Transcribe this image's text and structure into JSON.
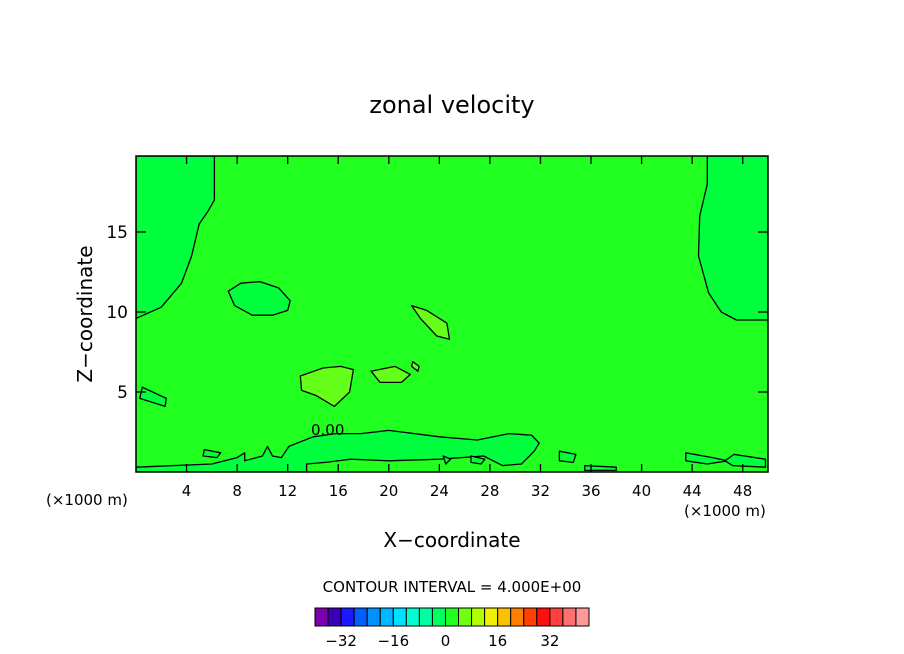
{
  "chart_data": {
    "type": "heatmap",
    "title": "zonal velocity",
    "xlabel": "X−coordinate",
    "ylabel": "Z−coordinate",
    "x_units": "(×1000 m)",
    "xlim": [
      0,
      50
    ],
    "ylim": [
      0,
      19.75
    ],
    "x_ticks": [
      4,
      8,
      12,
      16,
      20,
      24,
      28,
      32,
      36,
      40,
      44,
      48
    ],
    "y_ticks": [
      5,
      10,
      15
    ],
    "contour_label": "0.00",
    "contour_interval_text": "CONTOUR INTERVAL = 4.000E+00",
    "colorbar": {
      "colors": [
        "#7a00b0",
        "#3a00b8",
        "#1a1aff",
        "#0060ff",
        "#0090ff",
        "#00b8ff",
        "#00e0ff",
        "#00ffd0",
        "#00ffa0",
        "#00ff60",
        "#20ff20",
        "#70ff10",
        "#b0ff00",
        "#f0f000",
        "#ffc000",
        "#ff8000",
        "#ff4000",
        "#ff1010",
        "#ff4040",
        "#ff7070",
        "#ff9898"
      ],
      "tick_labels": [
        "−32",
        "−16",
        "0",
        "16",
        "32"
      ]
    },
    "region_colors": {
      "background": "#21ff21",
      "negative": "#00ff3c",
      "positive": "#66ff1a"
    },
    "regions": {
      "left_negative": [
        [
          0,
          19.75
        ],
        [
          6.2,
          19.75
        ],
        [
          6.2,
          17
        ],
        [
          5.7,
          16.3
        ],
        [
          5.0,
          15.5
        ],
        [
          4.4,
          13.5
        ],
        [
          3.6,
          11.8
        ],
        [
          2.0,
          10.3
        ],
        [
          0,
          9.6
        ]
      ],
      "right_negative": [
        [
          45.2,
          19.75
        ],
        [
          50,
          19.75
        ],
        [
          50,
          9.5
        ],
        [
          47.5,
          9.5
        ],
        [
          46.3,
          10
        ],
        [
          45.3,
          11.2
        ],
        [
          44.5,
          13.5
        ],
        [
          44.6,
          16
        ],
        [
          45.2,
          18
        ]
      ],
      "negative_blob_1": [
        [
          7.3,
          11.3
        ],
        [
          8.3,
          11.8
        ],
        [
          9.8,
          11.9
        ],
        [
          11.3,
          11.5
        ],
        [
          12.2,
          10.7
        ],
        [
          12.0,
          10.1
        ],
        [
          10.8,
          9.8
        ],
        [
          9.2,
          9.8
        ],
        [
          7.8,
          10.4
        ]
      ],
      "surface_negative": [
        [
          0,
          0
        ],
        [
          0,
          0.3
        ],
        [
          6,
          0.5
        ],
        [
          8,
          0.9
        ],
        [
          8.6,
          1.2
        ],
        [
          8.6,
          0.7
        ],
        [
          10,
          1.0
        ],
        [
          10.4,
          1.6
        ],
        [
          10.8,
          1.0
        ],
        [
          11.5,
          0.9
        ],
        [
          12.1,
          1.6
        ],
        [
          14,
          2.2
        ],
        [
          15.8,
          2.4
        ],
        [
          17.8,
          2.4
        ],
        [
          20,
          2.6
        ],
        [
          24,
          2.2
        ],
        [
          27,
          2.0
        ],
        [
          29.5,
          2.4
        ],
        [
          31.3,
          2.3
        ],
        [
          31.9,
          1.8
        ],
        [
          31.5,
          1.3
        ],
        [
          30.5,
          0.5
        ],
        [
          29,
          0.4
        ],
        [
          27.5,
          1.0
        ],
        [
          24,
          0.8
        ],
        [
          20,
          0.7
        ],
        [
          17,
          0.8
        ],
        [
          15,
          0.6
        ],
        [
          13.5,
          0.5
        ],
        [
          13.5,
          0
        ]
      ],
      "positive_blob_1": [
        [
          13.0,
          6.0
        ],
        [
          14.8,
          6.5
        ],
        [
          16.2,
          6.6
        ],
        [
          17.2,
          6.4
        ],
        [
          16.9,
          5.0
        ],
        [
          15.7,
          4.1
        ],
        [
          14.2,
          4.8
        ],
        [
          13.1,
          5.1
        ]
      ],
      "positive_blob_2": [
        [
          18.6,
          6.3
        ],
        [
          20.5,
          6.6
        ],
        [
          21.7,
          6.1
        ],
        [
          21.0,
          5.6
        ],
        [
          19.3,
          5.6
        ]
      ],
      "positive_blob_3": [
        [
          21.8,
          10.4
        ],
        [
          23.0,
          10.1
        ],
        [
          24.6,
          9.3
        ],
        [
          24.8,
          8.3
        ],
        [
          23.8,
          8.5
        ],
        [
          22.5,
          9.6
        ]
      ],
      "positive_blob_4": [
        [
          21.9,
          6.9
        ],
        [
          22.4,
          6.6
        ],
        [
          22.3,
          6.3
        ],
        [
          21.8,
          6.6
        ]
      ],
      "negative_small_1": [
        [
          0.5,
          5.3
        ],
        [
          2.4,
          4.6
        ],
        [
          2.3,
          4.1
        ],
        [
          0.3,
          4.6
        ]
      ],
      "negative_small_2": [
        [
          35.5,
          0.4
        ],
        [
          38,
          0.3
        ],
        [
          38,
          0.1
        ],
        [
          35.5,
          0.1
        ]
      ],
      "negative_small_3": [
        [
          43.5,
          1.2
        ],
        [
          45.6,
          0.9
        ],
        [
          46.8,
          0.7
        ],
        [
          45.2,
          0.5
        ],
        [
          43.5,
          0.7
        ]
      ],
      "negative_small_4": [
        [
          47.3,
          1.1
        ],
        [
          49.8,
          0.8
        ],
        [
          49.8,
          0.3
        ],
        [
          47.2,
          0.4
        ],
        [
          46.6,
          0.7
        ]
      ],
      "negative_small_5": [
        [
          33.5,
          1.3
        ],
        [
          34.8,
          1.1
        ],
        [
          34.6,
          0.6
        ],
        [
          33.5,
          0.7
        ]
      ],
      "negative_small_6": [
        [
          26.5,
          1.0
        ],
        [
          27.6,
          0.8
        ],
        [
          27.3,
          0.5
        ],
        [
          26.5,
          0.6
        ]
      ],
      "negative_small_7": [
        [
          24.3,
          1.0
        ],
        [
          24.9,
          0.8
        ],
        [
          24.5,
          0.5
        ]
      ],
      "negative_small_8": [
        [
          5.4,
          1.4
        ],
        [
          6.7,
          1.2
        ],
        [
          6.4,
          0.9
        ],
        [
          5.3,
          1.0
        ]
      ]
    }
  }
}
